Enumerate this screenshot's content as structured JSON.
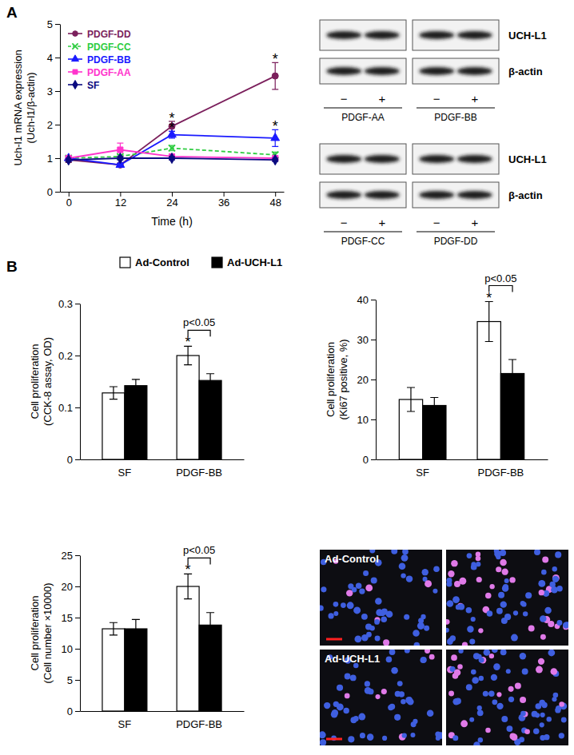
{
  "panel_labels": [
    "A",
    "B"
  ],
  "chart_data": [
    {
      "type": "line",
      "x_label": "Time (h)",
      "y_label": [
        "Uch-l1 mRNA expression",
        "(Uch-l1/β-actin)"
      ],
      "x": [
        0,
        12,
        24,
        48
      ],
      "xlim": [
        -2,
        50
      ],
      "xticks": [
        0,
        12,
        24,
        36,
        48
      ],
      "ylim": [
        0,
        5
      ],
      "yticks": [
        0,
        1,
        2,
        3,
        4,
        5
      ],
      "legend": "top-left",
      "series": [
        {
          "name": "PDGF-DD",
          "color": "#7b1f5c",
          "marker": "circle",
          "line_style": "solid",
          "values": [
            0.95,
            0.8,
            1.95,
            3.45
          ],
          "errors": [
            0.08,
            0.05,
            0.15,
            0.4
          ]
        },
        {
          "name": "PDGF-CC",
          "color": "#2ecc40",
          "marker": "x",
          "line_style": "dashed",
          "values": [
            1.0,
            1.05,
            1.3,
            1.1
          ],
          "errors": [
            0.05,
            0.05,
            0.08,
            0.08
          ]
        },
        {
          "name": "PDGF-BB",
          "color": "#1a1aff",
          "marker": "triangle",
          "line_style": "solid",
          "values": [
            1.0,
            0.8,
            1.7,
            1.6
          ],
          "errors": [
            0.05,
            0.05,
            0.1,
            0.25
          ]
        },
        {
          "name": "PDGF-AA",
          "color": "#ff33cc",
          "marker": "square",
          "line_style": "solid",
          "values": [
            1.0,
            1.25,
            1.05,
            1.0
          ],
          "errors": [
            0.05,
            0.2,
            0.05,
            0.05
          ]
        },
        {
          "name": "SF",
          "color": "#0a0a80",
          "marker": "diamond",
          "line_style": "solid",
          "values": [
            0.95,
            1.0,
            1.0,
            0.95
          ],
          "errors": [
            0.05,
            0.05,
            0.05,
            0.05
          ]
        }
      ],
      "annotations": [
        {
          "text": "*",
          "series": 0,
          "index": 2
        },
        {
          "text": "*",
          "series": 2,
          "index": 2
        },
        {
          "text": "*",
          "series": 0,
          "index": 3
        },
        {
          "text": "*",
          "series": 2,
          "index": 3
        }
      ]
    },
    {
      "type": "bar",
      "y_label": [
        "Cell proliferation",
        "(CCK-8 assay, OD)"
      ],
      "categories": [
        "SF",
        "PDGF-BB"
      ],
      "ylim": [
        0,
        0.3
      ],
      "yticks": [
        0,
        0.1,
        0.2,
        0.3
      ],
      "legend": "top",
      "series": [
        {
          "name": "Ad-Control",
          "color": "#ffffff",
          "values": [
            0.128,
            0.2
          ],
          "errors": [
            0.012,
            0.018
          ]
        },
        {
          "name": "Ad-UCH-L1",
          "color": "#000000",
          "values": [
            0.142,
            0.152
          ],
          "errors": [
            0.012,
            0.013
          ]
        }
      ],
      "annotations": [
        {
          "text": "*",
          "series": 0,
          "index": 1
        }
      ],
      "comparisons": [
        {
          "text": "p<0.05",
          "series": [
            0,
            1
          ],
          "index": 1
        }
      ]
    },
    {
      "type": "bar",
      "y_label": [
        "Cell proliferation",
        "(Ki67 positive, %)"
      ],
      "categories": [
        "SF",
        "PDGF-BB"
      ],
      "ylim": [
        0,
        40
      ],
      "yticks": [
        0,
        10,
        20,
        30,
        40
      ],
      "series": [
        {
          "color": "#ffffff",
          "values": [
            15,
            34.5
          ],
          "errors": [
            3,
            5
          ]
        },
        {
          "color": "#000000",
          "values": [
            13.5,
            21.5
          ],
          "errors": [
            2,
            3.5
          ]
        }
      ],
      "annotations": [
        {
          "text": "*",
          "series": 0,
          "index": 1
        }
      ],
      "comparisons": [
        {
          "text": "p<0.05",
          "series": [
            0,
            1
          ],
          "index": 1
        }
      ]
    },
    {
      "type": "bar",
      "y_label": [
        "Cell proliferation",
        "(Cell number ×10000)"
      ],
      "categories": [
        "SF",
        "PDGF-BB"
      ],
      "ylim": [
        0,
        25
      ],
      "yticks": [
        0,
        5,
        10,
        15,
        20,
        25
      ],
      "series": [
        {
          "color": "#ffffff",
          "values": [
            13.2,
            20
          ],
          "errors": [
            1,
            2
          ]
        },
        {
          "color": "#000000",
          "values": [
            13.2,
            13.8
          ],
          "errors": [
            1.5,
            2
          ]
        }
      ],
      "annotations": [
        {
          "text": "*",
          "series": 0,
          "index": 1
        }
      ],
      "comparisons": [
        {
          "text": "p<0.05",
          "series": [
            0,
            1
          ],
          "index": 1
        }
      ]
    }
  ],
  "blots": {
    "rows": [
      "UCH-L1",
      "β-actin"
    ],
    "lanes": [
      "−",
      "+"
    ],
    "groups": [
      "PDGF-AA",
      "PDGF-BB",
      "PDGF-CC",
      "PDGF-DD"
    ]
  },
  "micrographs": {
    "labels": [
      "Ad-Control",
      "Ad-UCH-L1"
    ]
  }
}
